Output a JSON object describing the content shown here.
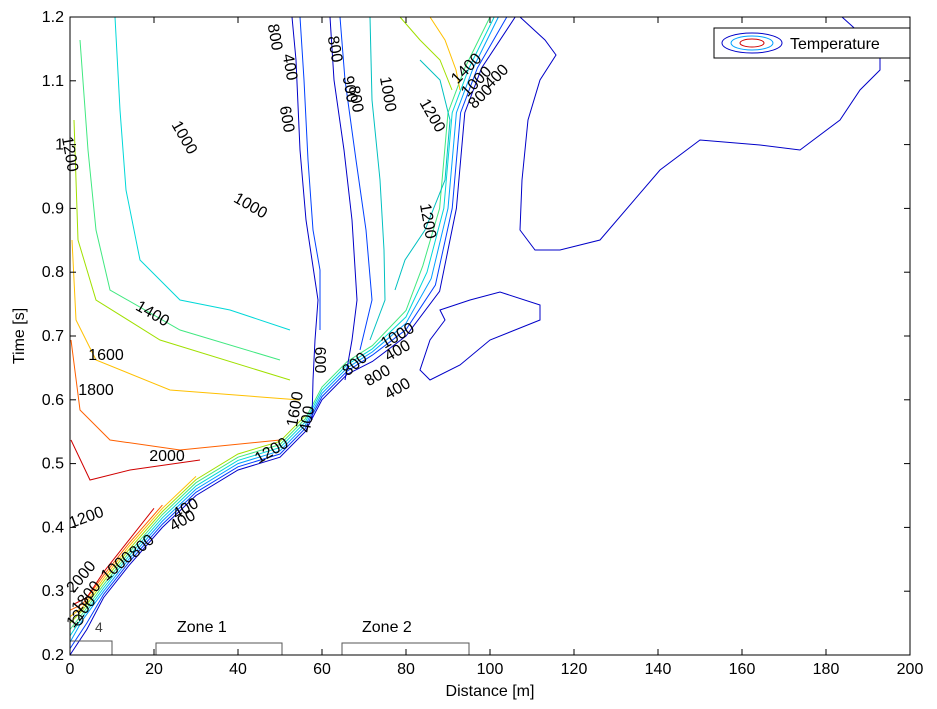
{
  "chart_data": {
    "type": "contour",
    "title": "",
    "xlabel": "Distance [m]",
    "ylabel": "Time [s]",
    "xlim": [
      0,
      200
    ],
    "ylim": [
      0.2,
      1.2
    ],
    "xticks": [
      "0",
      "20",
      "40",
      "60",
      "80",
      "100",
      "120",
      "140",
      "160",
      "180",
      "200"
    ],
    "yticks": [
      "0.2",
      "0.3",
      "0.4",
      "0.5",
      "0.6",
      "0.7",
      "0.8",
      "0.9",
      "1",
      "1.1",
      "1.2"
    ],
    "grid": false,
    "legend": {
      "label": "Temperature",
      "position": "top-right"
    },
    "series": [
      {
        "level": 400,
        "color": "#0000c8",
        "points": [
          [
            0,
            0.2
          ],
          [
            4,
            0.24
          ],
          [
            8,
            0.29
          ],
          [
            14,
            0.34
          ],
          [
            22,
            0.4
          ],
          [
            30,
            0.45
          ],
          [
            40,
            0.49
          ],
          [
            50,
            0.51
          ],
          [
            56,
            0.55
          ],
          [
            60,
            0.6
          ],
          [
            66,
            0.64
          ],
          [
            72,
            0.66
          ],
          [
            80,
            0.7
          ],
          [
            88,
            0.77
          ],
          [
            92,
            0.9
          ],
          [
            94,
            1.05
          ],
          [
            98,
            1.12
          ],
          [
            106,
            1.2
          ]
        ]
      },
      {
        "level": 600,
        "color": "#0040ff",
        "points": [
          [
            0,
            0.21
          ],
          [
            4,
            0.25
          ],
          [
            8,
            0.295
          ],
          [
            14,
            0.345
          ],
          [
            22,
            0.405
          ],
          [
            30,
            0.455
          ],
          [
            40,
            0.495
          ],
          [
            50,
            0.515
          ],
          [
            56,
            0.555
          ],
          [
            60,
            0.605
          ],
          [
            66,
            0.645
          ],
          [
            72,
            0.67
          ],
          [
            80,
            0.71
          ],
          [
            87,
            0.78
          ],
          [
            91,
            0.9
          ],
          [
            93,
            1.05
          ],
          [
            97,
            1.12
          ],
          [
            104,
            1.2
          ]
        ]
      },
      {
        "level": 800,
        "color": "#00a0ff",
        "points": [
          [
            0,
            0.22
          ],
          [
            3,
            0.255
          ],
          [
            8,
            0.3
          ],
          [
            14,
            0.35
          ],
          [
            22,
            0.41
          ],
          [
            30,
            0.46
          ],
          [
            40,
            0.5
          ],
          [
            50,
            0.52
          ],
          [
            56,
            0.56
          ],
          [
            60,
            0.61
          ],
          [
            66,
            0.65
          ],
          [
            72,
            0.675
          ],
          [
            80,
            0.72
          ],
          [
            86,
            0.79
          ],
          [
            90,
            0.9
          ],
          [
            92,
            1.05
          ],
          [
            96,
            1.12
          ],
          [
            102,
            1.2
          ]
        ]
      },
      {
        "level": 1000,
        "color": "#00d8d8",
        "points": [
          [
            0,
            0.23
          ],
          [
            3,
            0.26
          ],
          [
            8,
            0.305
          ],
          [
            14,
            0.355
          ],
          [
            22,
            0.415
          ],
          [
            30,
            0.465
          ],
          [
            40,
            0.505
          ],
          [
            50,
            0.525
          ],
          [
            56,
            0.565
          ],
          [
            60,
            0.615
          ],
          [
            66,
            0.655
          ],
          [
            72,
            0.68
          ],
          [
            80,
            0.73
          ],
          [
            85,
            0.8
          ],
          [
            89,
            0.9
          ],
          [
            91,
            1.05
          ],
          [
            95,
            1.12
          ],
          [
            101,
            1.2
          ]
        ]
      },
      {
        "level": 1200,
        "color": "#40e880",
        "points": [
          [
            0,
            0.24
          ],
          [
            3,
            0.265
          ],
          [
            8,
            0.31
          ],
          [
            14,
            0.36
          ],
          [
            22,
            0.42
          ],
          [
            30,
            0.47
          ],
          [
            40,
            0.51
          ],
          [
            50,
            0.53
          ],
          [
            56,
            0.57
          ],
          [
            60,
            0.62
          ],
          [
            66,
            0.66
          ],
          [
            72,
            0.685
          ],
          [
            80,
            0.74
          ],
          [
            84,
            0.81
          ],
          [
            88,
            0.9
          ],
          [
            90,
            1.05
          ],
          [
            94,
            1.12
          ],
          [
            100,
            1.2
          ]
        ]
      },
      {
        "level": 1400,
        "color": "#a0e000",
        "points": [
          [
            0,
            0.25
          ],
          [
            3,
            0.27
          ],
          [
            8,
            0.315
          ],
          [
            14,
            0.365
          ],
          [
            22,
            0.425
          ],
          [
            30,
            0.475
          ],
          [
            40,
            0.515
          ],
          [
            50,
            0.535
          ],
          [
            56,
            0.575
          ]
        ]
      },
      {
        "level": 1600,
        "color": "#ffc000",
        "points": [
          [
            0,
            0.26
          ],
          [
            3,
            0.275
          ],
          [
            8,
            0.32
          ],
          [
            14,
            0.37
          ],
          [
            22,
            0.43
          ],
          [
            30,
            0.48
          ]
        ]
      },
      {
        "level": 1800,
        "color": "#ff6000",
        "points": [
          [
            0,
            0.27
          ],
          [
            3,
            0.28
          ],
          [
            8,
            0.325
          ],
          [
            14,
            0.375
          ],
          [
            22,
            0.435
          ]
        ]
      },
      {
        "level": 2000,
        "color": "#d00000",
        "points": [
          [
            1,
            0.28
          ],
          [
            4,
            0.29
          ],
          [
            8,
            0.33
          ],
          [
            14,
            0.38
          ],
          [
            20,
            0.43
          ]
        ]
      }
    ],
    "contour_labels": [
      "800",
      "400",
      "600",
      "800",
      "900",
      "800",
      "1000",
      "1200",
      "1400",
      "1000",
      "800",
      "400",
      "1200",
      "1000",
      "1000",
      "1200",
      "1400",
      "1600",
      "1800",
      "2000",
      "1200",
      "400",
      "1000",
      "400",
      "800",
      "400",
      "1600",
      "1200",
      "400",
      "2000",
      "1800",
      "1200",
      "1000",
      "800",
      "400",
      "600",
      "800"
    ],
    "annotations": [
      "Zone 1",
      "Zone 2",
      "4"
    ]
  }
}
